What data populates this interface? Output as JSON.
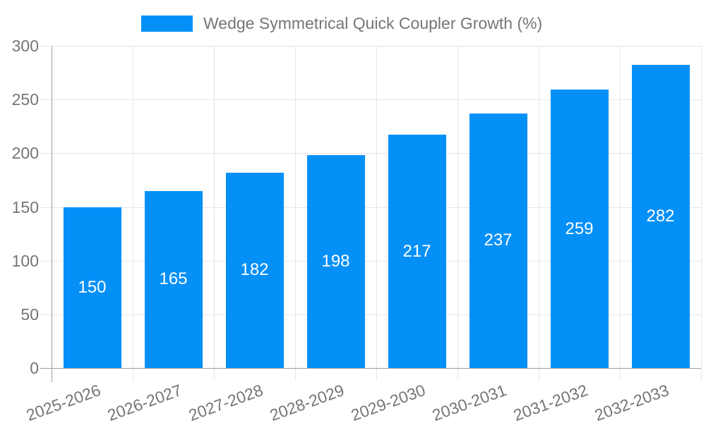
{
  "chart_data": {
    "type": "bar",
    "title": "Wedge Symmetrical Quick Coupler Growth (%)",
    "categories": [
      "2025-2026",
      "2026-2027",
      "2027-2028",
      "2028-2029",
      "2029-2030",
      "2030-2031",
      "2031-2032",
      "2032-2033"
    ],
    "values": [
      150,
      165,
      182,
      198,
      217,
      237,
      259,
      282
    ],
    "xlabel": "",
    "ylabel": "",
    "ylim": [
      0,
      300
    ],
    "yticks": [
      0,
      50,
      100,
      150,
      200,
      250,
      300
    ],
    "grid": "on",
    "legend_position": "top-center",
    "bar_label_position": "inside-center",
    "colors": {
      "bar": "#0590F8",
      "bar_label": "#FFFFFF",
      "axis_text": "#757575",
      "grid_line": "#E6E6E6",
      "axis_line": "#9E9E9E",
      "background": "#FFFFFF"
    }
  }
}
